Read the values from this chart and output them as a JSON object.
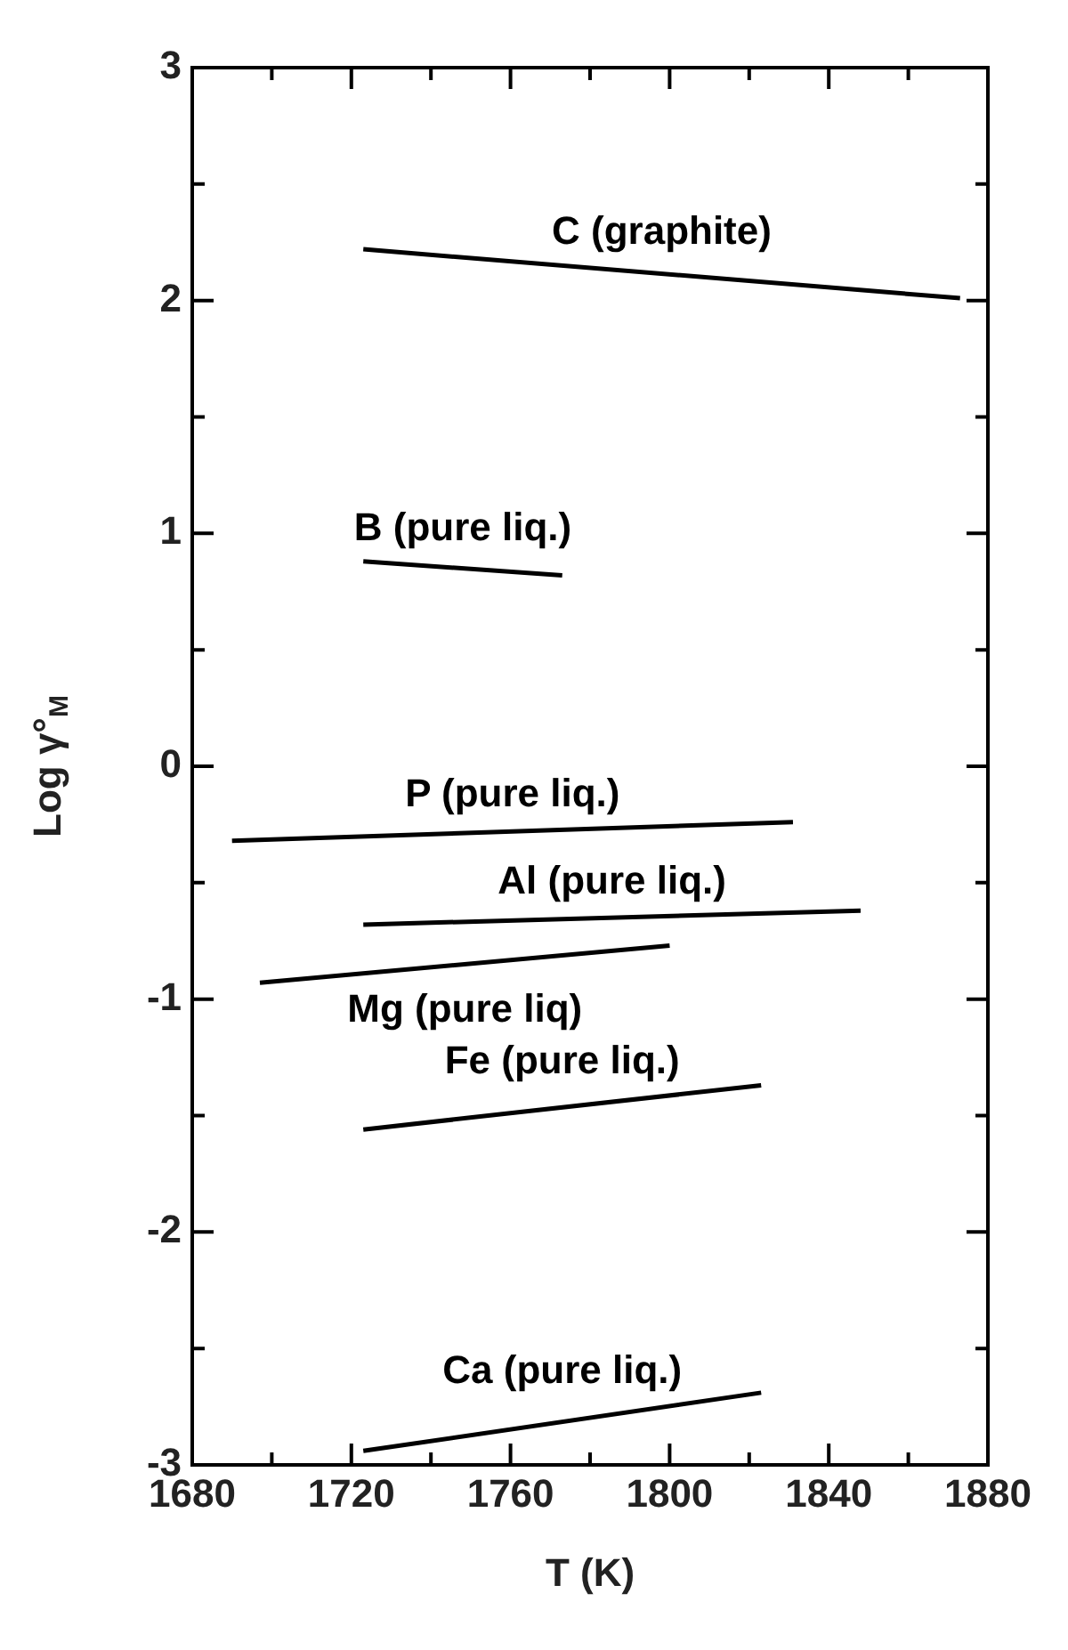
{
  "chart_data": {
    "type": "line",
    "xlabel": "T (K)",
    "ylabel": "Log γ°$_{M}$",
    "xlim": [
      1680,
      1880
    ],
    "xticks": [
      1680,
      {
        "value": 1700,
        "label": null
      },
      1720,
      {
        "value": 1740,
        "label": null
      },
      1760,
      {
        "value": 1780,
        "label": null
      },
      1800,
      {
        "value": 1820,
        "label": null
      },
      1840,
      {
        "value": 1860,
        "label": null
      },
      1880
    ],
    "ylim": [
      -3,
      3
    ],
    "yticks": [
      -3,
      {
        "value": -2.5,
        "label": null
      },
      -2,
      {
        "value": -1.5,
        "label": null
      },
      -1,
      {
        "value": -0.5,
        "label": null
      },
      0,
      {
        "value": 0.5,
        "label": null
      },
      1,
      {
        "value": 1.5,
        "label": null
      },
      2,
      {
        "value": 2.5,
        "label": null
      },
      3
    ],
    "grid": false,
    "legend": false,
    "marker": "none",
    "line_style": "solid",
    "series": [
      {
        "name": "C (graphite)",
        "color": "#000000",
        "x": [
          1723,
          1873
        ],
        "values": [
          2.22,
          2.01
        ]
      },
      {
        "name": "B (pure liq.)",
        "color": "#000000",
        "x": [
          1723,
          1773
        ],
        "values": [
          0.88,
          0.82
        ]
      },
      {
        "name": "P (pure liq.)",
        "color": "#000000",
        "x": [
          1690,
          1831
        ],
        "values": [
          -0.32,
          -0.24
        ]
      },
      {
        "name": "Al (pure liq.)",
        "color": "#000000",
        "x": [
          1723,
          1848
        ],
        "values": [
          -0.68,
          -0.62
        ]
      },
      {
        "name": "Mg (pure liq)",
        "color": "#000000",
        "x": [
          1697,
          1800
        ],
        "values": [
          -0.93,
          -0.77
        ]
      },
      {
        "name": "Fe (pure liq.)",
        "color": "#000000",
        "x": [
          1723,
          1823
        ],
        "values": [
          -1.56,
          -1.37
        ]
      },
      {
        "name": "Ca (pure liq.)",
        "color": "#000000",
        "x": [
          1723,
          1823
        ],
        "values": [
          -2.94,
          -2.69
        ]
      }
    ]
  }
}
